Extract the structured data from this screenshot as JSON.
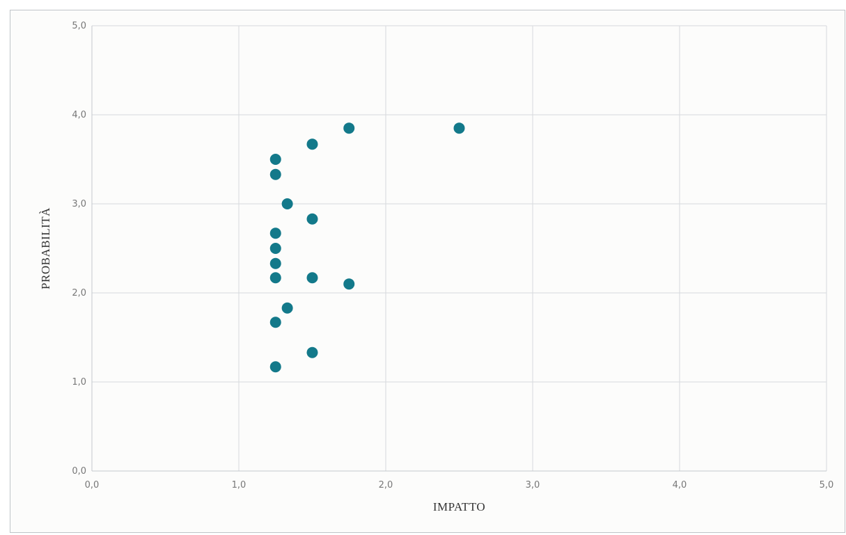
{
  "chart_data": {
    "type": "scatter",
    "title": "",
    "xlabel": "IMPATTO",
    "ylabel": "PROBABILITÀ",
    "xlim": [
      0,
      5
    ],
    "ylim": [
      0,
      5
    ],
    "x_ticks": [
      "0,0",
      "1,0",
      "2,0",
      "3,0",
      "4,0",
      "5,0"
    ],
    "y_ticks": [
      "0,0",
      "1,0",
      "2,0",
      "3,0",
      "4,0",
      "5,0"
    ],
    "grid": true,
    "legend": "none",
    "series": [
      {
        "color": "#13798a",
        "points": [
          {
            "x": 1.75,
            "y": 3.85
          },
          {
            "x": 2.5,
            "y": 3.85
          },
          {
            "x": 1.5,
            "y": 3.67
          },
          {
            "x": 1.25,
            "y": 3.5
          },
          {
            "x": 1.25,
            "y": 3.33
          },
          {
            "x": 1.33,
            "y": 3.0
          },
          {
            "x": 1.5,
            "y": 2.83
          },
          {
            "x": 1.25,
            "y": 2.67
          },
          {
            "x": 1.25,
            "y": 2.5
          },
          {
            "x": 1.25,
            "y": 2.33
          },
          {
            "x": 1.25,
            "y": 2.17
          },
          {
            "x": 1.5,
            "y": 2.17
          },
          {
            "x": 1.75,
            "y": 2.1
          },
          {
            "x": 1.33,
            "y": 1.83
          },
          {
            "x": 1.25,
            "y": 1.67
          },
          {
            "x": 1.5,
            "y": 1.33
          },
          {
            "x": 1.25,
            "y": 1.17
          }
        ]
      }
    ]
  }
}
